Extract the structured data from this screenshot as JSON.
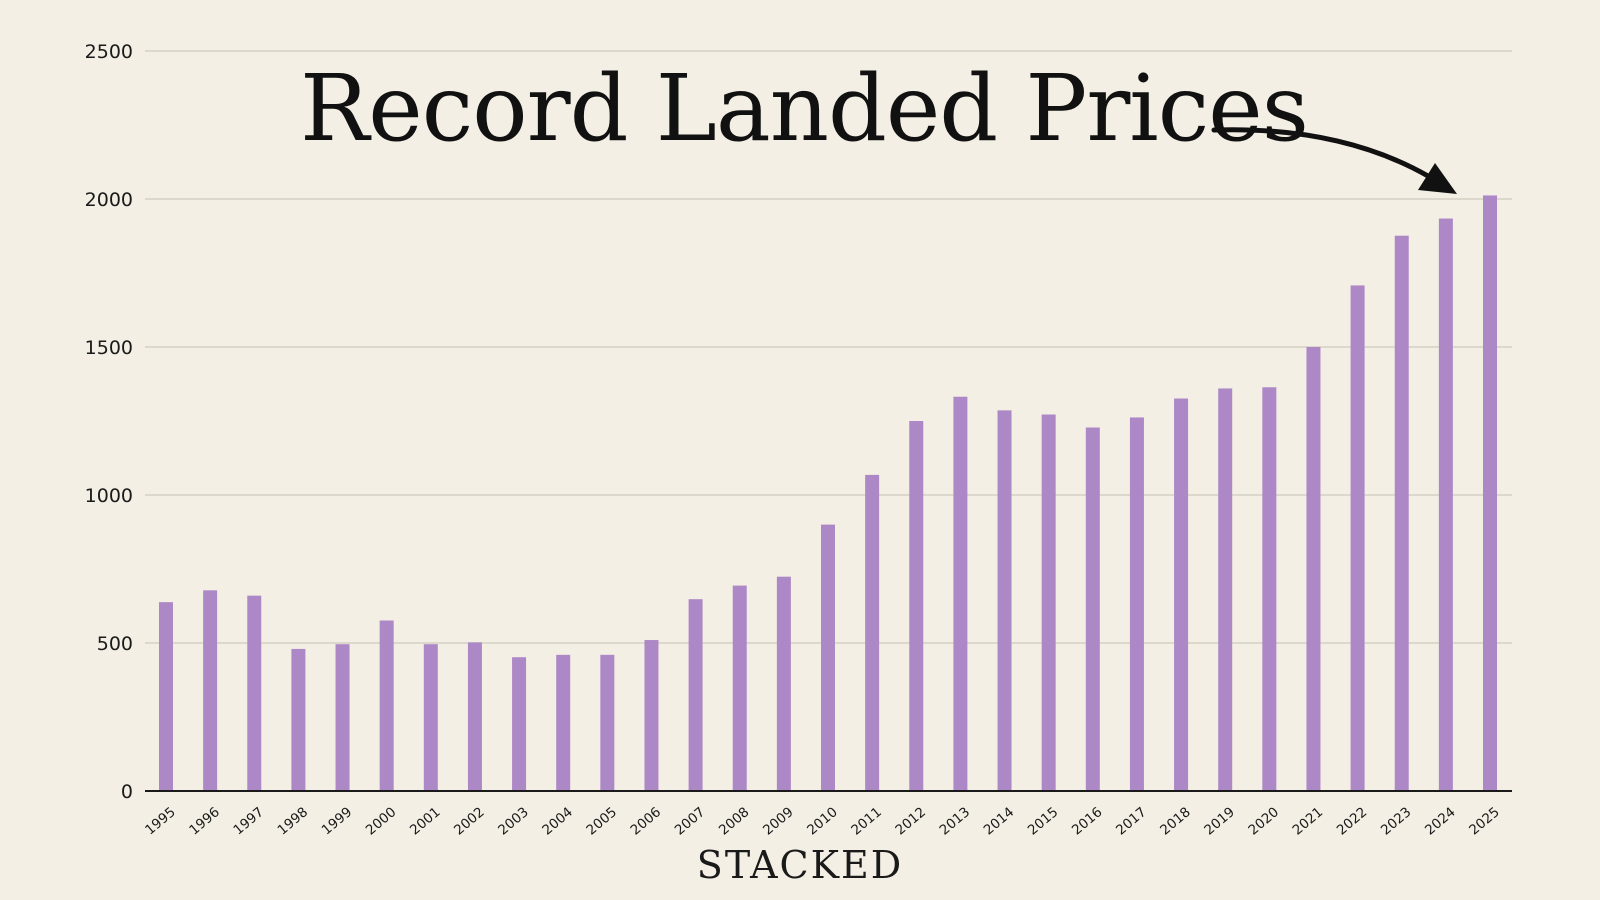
{
  "brand": "STACKED",
  "colors": {
    "background": "#f4efe4",
    "bar": "#ad88c6",
    "grid": "#ddd8cc",
    "axis": "#1a1a1a",
    "text": "#111111"
  },
  "chart_data": {
    "type": "bar",
    "title": "Record Landed Prices",
    "xlabel": "",
    "ylabel": "",
    "ylim": [
      0,
      2500
    ],
    "yticks": [
      0,
      500,
      1000,
      1500,
      2000,
      2500
    ],
    "grid": true,
    "annotation": "arrow from title pointing to 2025 bar",
    "categories": [
      "1995",
      "1996",
      "1997",
      "1998",
      "1999",
      "2000",
      "2001",
      "2002",
      "2003",
      "2004",
      "2005",
      "2006",
      "2007",
      "2008",
      "2009",
      "2010",
      "2011",
      "2012",
      "2013",
      "2014",
      "2015",
      "2016",
      "2017",
      "2018",
      "2019",
      "2020",
      "2021",
      "2022",
      "2023",
      "2024",
      "2025"
    ],
    "values": [
      638,
      678,
      660,
      480,
      496,
      576,
      496,
      502,
      452,
      460,
      460,
      510,
      648,
      694,
      724,
      900,
      1068,
      1250,
      1332,
      1286,
      1272,
      1228,
      1262,
      1326,
      1360,
      1364,
      1500,
      1708,
      1876,
      1934,
      2012
    ]
  }
}
